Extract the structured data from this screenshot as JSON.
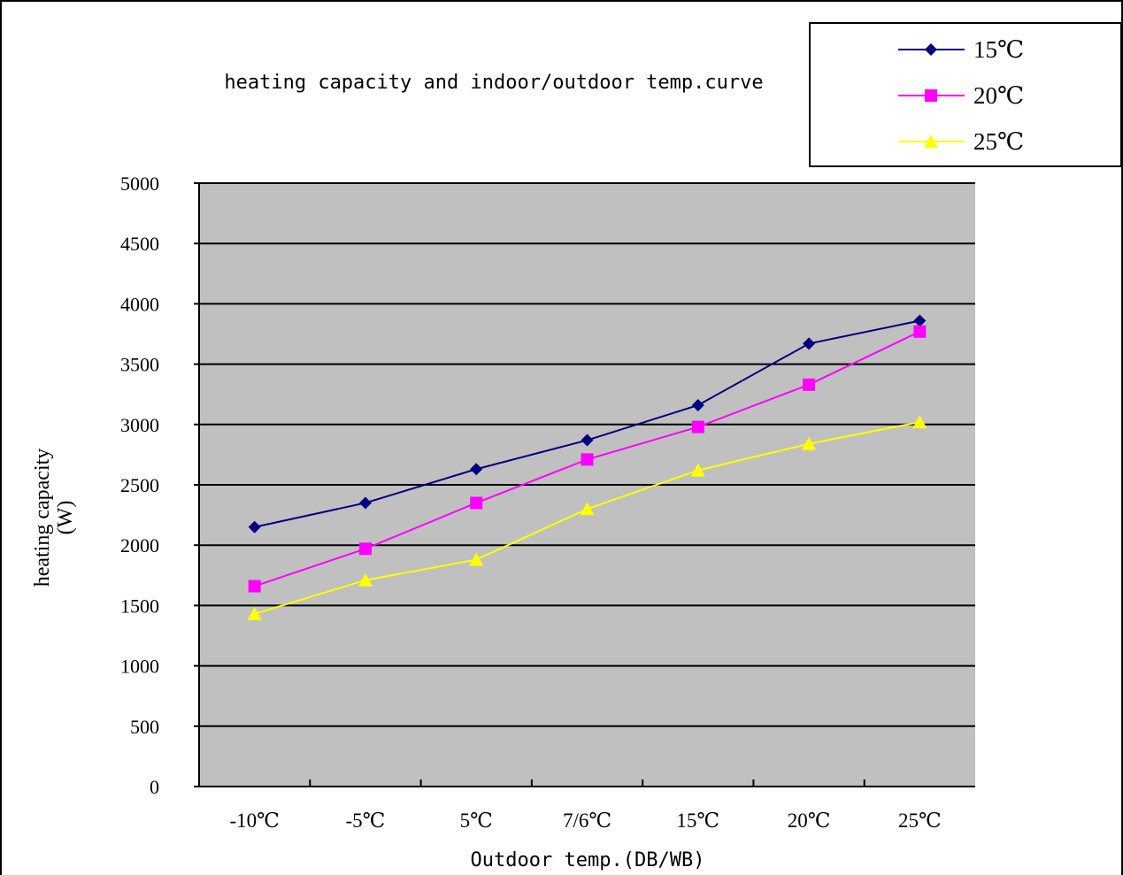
{
  "chart_data": {
    "type": "line",
    "title": "heating capacity and indoor/outdoor temp.curve",
    "xlabel": "Outdoor temp.(DB/WB)",
    "ylabel": "heating capacity",
    "ylabel_unit": "(W)",
    "categories": [
      "-10℃",
      "-5℃",
      "5℃",
      "7/6℃",
      "15℃",
      "20℃",
      "25℃"
    ],
    "yticks": [
      "0",
      "500",
      "1000",
      "1500",
      "2000",
      "2500",
      "3000",
      "3500",
      "4000",
      "4500",
      "5000"
    ],
    "ylim": [
      0,
      5000
    ],
    "grid": true,
    "legend_position": "top-right",
    "plot_background": "#c0c0c0",
    "series": [
      {
        "name": "15℃",
        "color": "#000080",
        "marker": "diamond",
        "values": [
          2150,
          2350,
          2630,
          2870,
          3160,
          3670,
          3860
        ]
      },
      {
        "name": "20℃",
        "color": "#ff00ff",
        "marker": "square",
        "values": [
          1660,
          1970,
          2350,
          2710,
          2980,
          3330,
          3770
        ]
      },
      {
        "name": "25℃",
        "color": "#ffff00",
        "marker": "triangle",
        "values": [
          1430,
          1710,
          1880,
          2300,
          2620,
          2840,
          3020
        ]
      }
    ]
  }
}
